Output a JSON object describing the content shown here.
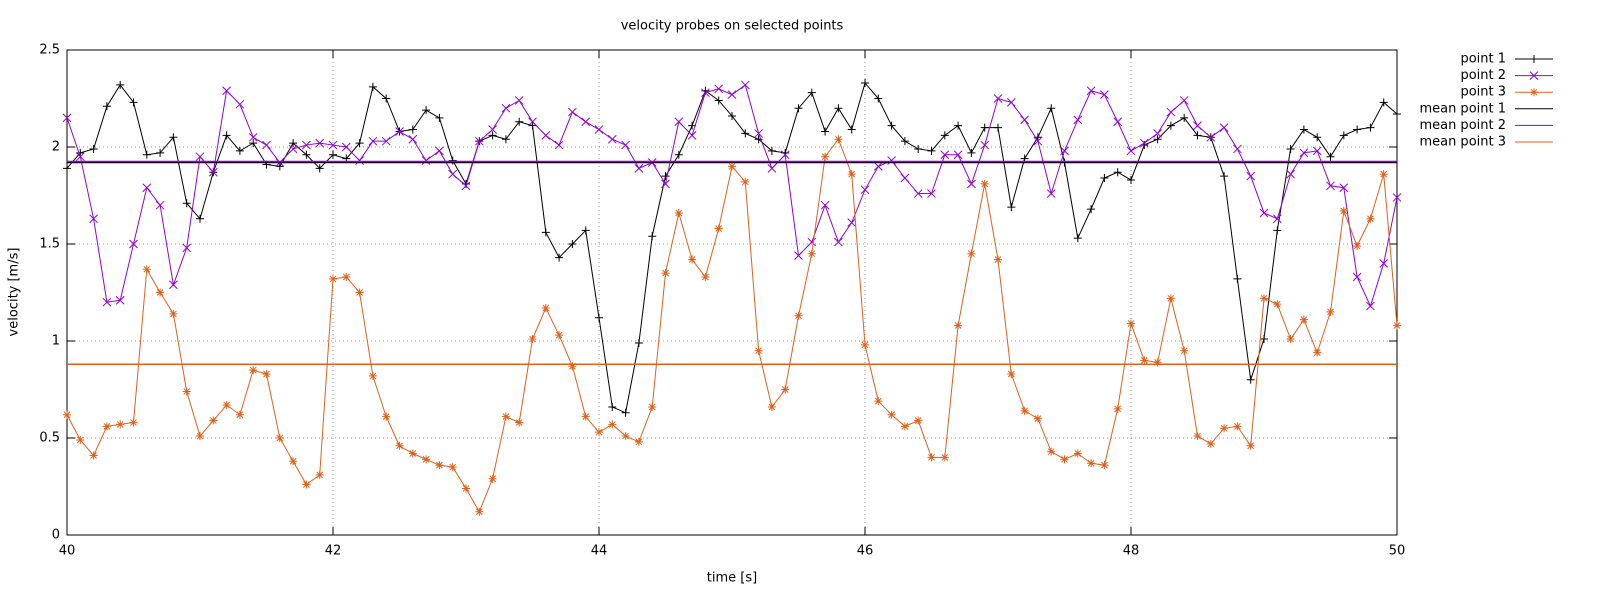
{
  "chart_data": {
    "type": "line",
    "title": "velocity probes on selected points",
    "xlabel": "time [s]",
    "ylabel": "velocity [m/s]",
    "x": [
      40,
      40.1,
      40.2,
      40.3,
      40.4,
      40.5,
      40.6,
      40.7,
      40.8,
      40.9,
      41,
      41.1,
      41.2,
      41.3,
      41.4,
      41.5,
      41.6,
      41.7,
      41.8,
      41.9,
      42,
      42.1,
      42.2,
      42.3,
      42.4,
      42.5,
      42.6,
      42.7,
      42.8,
      42.9,
      43,
      43.1,
      43.2,
      43.3,
      43.4,
      43.5,
      43.6,
      43.7,
      43.8,
      43.9,
      44,
      44.1,
      44.2,
      44.3,
      44.4,
      44.5,
      44.6,
      44.7,
      44.8,
      44.9,
      45,
      45.1,
      45.2,
      45.3,
      45.4,
      45.5,
      45.6,
      45.7,
      45.8,
      45.9,
      46,
      46.1,
      46.2,
      46.3,
      46.4,
      46.5,
      46.6,
      46.7,
      46.8,
      46.9,
      47,
      47.1,
      47.2,
      47.3,
      47.4,
      47.5,
      47.6,
      47.7,
      47.8,
      47.9,
      48,
      48.1,
      48.2,
      48.3,
      48.4,
      48.5,
      48.6,
      48.7,
      48.8,
      48.9,
      49,
      49.1,
      49.2,
      49.3,
      49.4,
      49.5,
      49.6,
      49.7,
      49.8,
      49.9,
      50
    ],
    "series": [
      {
        "name": "point 1",
        "color": "#000000",
        "marker": "plus",
        "values": [
          1.89,
          1.97,
          1.99,
          2.21,
          2.32,
          2.23,
          1.96,
          1.97,
          2.05,
          1.71,
          1.63,
          1.87,
          2.06,
          1.98,
          2.02,
          1.91,
          1.9,
          2.02,
          1.96,
          1.89,
          1.96,
          1.94,
          2.02,
          2.31,
          2.25,
          2.08,
          2.09,
          2.19,
          2.15,
          1.93,
          1.81,
          2.03,
          2.06,
          2.04,
          2.13,
          2.11,
          1.56,
          1.43,
          1.5,
          1.57,
          1.12,
          0.66,
          0.63,
          0.99,
          1.54,
          1.85,
          1.96,
          2.11,
          2.29,
          2.24,
          2.16,
          2.07,
          2.04,
          1.98,
          1.97,
          2.2,
          2.28,
          2.08,
          2.2,
          2.09,
          2.33,
          2.25,
          2.11,
          2.03,
          1.99,
          1.98,
          2.06,
          2.11,
          1.97,
          2.1,
          2.1,
          1.69,
          1.94,
          2.05,
          2.2,
          1.92,
          1.53,
          1.68,
          1.84,
          1.87,
          1.83,
          2.01,
          2.04,
          2.11,
          2.15,
          2.06,
          2.05,
          1.85,
          1.32,
          0.8,
          1.01,
          1.57,
          1.99,
          2.09,
          2.05,
          1.95,
          2.06,
          2.09,
          2.1,
          2.23,
          2.17
        ]
      },
      {
        "name": "point 2",
        "color": "#9400d3",
        "marker": "cross",
        "values": [
          2.15,
          1.95,
          1.63,
          1.2,
          1.21,
          1.5,
          1.79,
          1.7,
          1.29,
          1.48,
          1.95,
          1.87,
          2.29,
          2.22,
          2.05,
          2.01,
          1.92,
          1.99,
          2.01,
          2.02,
          2.01,
          2,
          1.93,
          2.03,
          2.03,
          2.08,
          2.04,
          1.93,
          1.98,
          1.86,
          1.8,
          2.03,
          2.09,
          2.2,
          2.24,
          2.13,
          2.06,
          2.01,
          2.18,
          2.13,
          2.09,
          2.04,
          2.01,
          1.89,
          1.92,
          1.81,
          2.13,
          2.06,
          2.28,
          2.3,
          2.27,
          2.32,
          2.07,
          1.89,
          1.96,
          1.44,
          1.51,
          1.7,
          1.51,
          1.61,
          1.78,
          1.9,
          1.93,
          1.84,
          1.76,
          1.76,
          1.96,
          1.96,
          1.81,
          2.01,
          2.25,
          2.23,
          2.14,
          2.03,
          1.76,
          1.98,
          2.14,
          2.29,
          2.27,
          2.13,
          1.98,
          2.02,
          2.07,
          2.18,
          2.24,
          2.11,
          2.05,
          2.1,
          1.99,
          1.85,
          1.66,
          1.63,
          1.86,
          1.97,
          1.98,
          1.8,
          1.79,
          1.33,
          1.18,
          1.4,
          1.74
        ]
      },
      {
        "name": "point 3",
        "color": "#e0601a",
        "marker": "star",
        "values": [
          0.62,
          0.49,
          0.41,
          0.56,
          0.57,
          0.58,
          1.37,
          1.25,
          1.14,
          0.74,
          0.51,
          0.59,
          0.67,
          0.62,
          0.85,
          0.83,
          0.5,
          0.38,
          0.26,
          0.31,
          1.32,
          1.33,
          1.25,
          0.82,
          0.61,
          0.46,
          0.42,
          0.39,
          0.36,
          0.35,
          0.24,
          0.12,
          0.29,
          0.61,
          0.58,
          1.01,
          1.17,
          1.03,
          0.87,
          0.61,
          0.53,
          0.57,
          0.51,
          0.48,
          0.66,
          1.35,
          1.66,
          1.42,
          1.33,
          1.58,
          1.9,
          1.82,
          0.95,
          0.66,
          0.75,
          1.13,
          1.45,
          1.95,
          2.04,
          1.86,
          0.98,
          0.69,
          0.62,
          0.56,
          0.59,
          0.4,
          0.4,
          1.08,
          1.45,
          1.81,
          1.42,
          0.83,
          0.64,
          0.6,
          0.43,
          0.39,
          0.42,
          0.37,
          0.36,
          0.65,
          1.09,
          0.9,
          0.89,
          1.22,
          0.95,
          0.51,
          0.47,
          0.55,
          0.56,
          0.46,
          1.22,
          1.19,
          1.01,
          1.11,
          0.94,
          1.15,
          1.67,
          1.49,
          1.63,
          1.86,
          1.08
        ]
      },
      {
        "name": "mean point 1",
        "color": "#000000",
        "value": 1.92
      },
      {
        "name": "mean point 2",
        "color": "#9400d3",
        "value": 1.925
      },
      {
        "name": "mean point 3",
        "color": "#e0601a",
        "value": 0.88
      }
    ],
    "xlim": [
      40,
      50
    ],
    "xticks": [
      40,
      42,
      44,
      46,
      48,
      50
    ],
    "ylim": [
      0,
      2.5
    ],
    "yticks": [
      0,
      0.5,
      1,
      1.5,
      2,
      2.5
    ],
    "grid": true,
    "legend": "top right outside"
  }
}
